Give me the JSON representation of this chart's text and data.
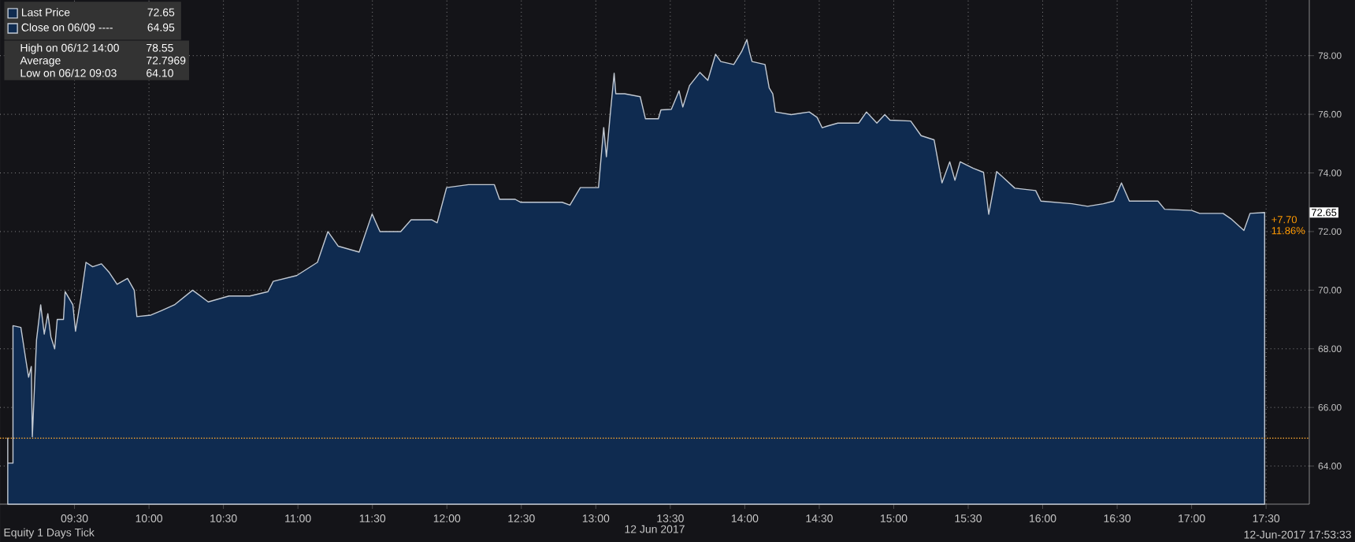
{
  "chart_data": {
    "type": "area",
    "title": "Equity 1 Days Tick",
    "xlabel": "12 Jun 2017",
    "x": [
      9.052,
      9.052,
      9.087,
      9.087,
      9.14,
      9.175,
      9.192,
      9.21,
      9.217,
      9.245,
      9.273,
      9.297,
      9.321,
      9.342,
      9.367,
      9.384,
      9.426,
      9.437,
      9.489,
      9.507,
      9.542,
      9.577,
      9.622,
      9.681,
      9.734,
      9.786,
      9.856,
      9.901,
      9.919,
      10.013,
      10.083,
      10.171,
      10.293,
      10.398,
      10.537,
      10.677,
      10.799,
      10.834,
      10.992,
      11.131,
      11.201,
      11.271,
      11.411,
      11.498,
      11.551,
      11.69,
      11.76,
      11.9,
      11.935,
      11.998,
      12.145,
      12.319,
      12.354,
      12.459,
      12.494,
      12.774,
      12.826,
      12.896,
      13.018,
      13.053,
      13.071,
      13.095,
      13.123,
      13.134,
      13.193,
      13.298,
      13.333,
      13.42,
      13.437,
      13.507,
      13.559,
      13.584,
      13.629,
      13.699,
      13.752,
      13.804,
      13.839,
      13.926,
      13.979,
      14.014,
      14.031,
      14.049,
      14.136,
      14.164,
      14.188,
      14.206,
      14.311,
      14.433,
      14.485,
      14.52,
      14.555,
      14.625,
      14.765,
      14.817,
      14.887,
      14.94,
      14.975,
      15.114,
      15.184,
      15.271,
      15.324,
      15.376,
      15.411,
      15.446,
      15.534,
      15.603,
      15.638,
      15.691,
      15.813,
      15.953,
      15.988,
      16.197,
      16.302,
      16.407,
      16.477,
      16.529,
      16.582,
      16.774,
      16.819,
      17.001,
      17.054,
      17.211,
      17.263,
      17.351,
      17.392,
      17.49
    ],
    "series": [
      {
        "name": "Last Price",
        "color": "#0f2b50",
        "values": [
          64.95,
          64.1,
          64.1,
          68.79,
          68.73,
          67.57,
          67.03,
          67.4,
          65.0,
          68.3,
          69.5,
          68.5,
          69.2,
          68.4,
          68.0,
          69.0,
          69.0,
          69.95,
          69.5,
          68.6,
          69.7,
          70.95,
          70.8,
          70.9,
          70.6,
          70.2,
          70.4,
          70.0,
          69.1,
          69.15,
          69.3,
          69.5,
          70.0,
          69.6,
          69.8,
          69.8,
          69.95,
          70.3,
          70.5,
          70.95,
          72.0,
          71.5,
          71.3,
          72.6,
          72.0,
          72.0,
          72.4,
          72.4,
          72.3,
          73.5,
          73.6,
          73.6,
          73.1,
          73.1,
          73.0,
          73.0,
          72.9,
          73.5,
          73.5,
          75.55,
          74.55,
          75.9,
          77.4,
          76.7,
          76.7,
          76.6,
          75.85,
          75.85,
          76.15,
          76.17,
          76.8,
          76.25,
          76.98,
          77.43,
          77.16,
          78.05,
          77.8,
          77.7,
          78.14,
          78.55,
          78.14,
          77.8,
          77.7,
          76.9,
          76.7,
          76.08,
          75.99,
          76.08,
          75.9,
          75.54,
          75.6,
          75.7,
          75.7,
          76.08,
          75.7,
          75.99,
          75.8,
          75.77,
          75.27,
          75.13,
          73.66,
          74.38,
          73.75,
          74.38,
          74.16,
          74.02,
          72.59,
          74.05,
          73.48,
          73.4,
          73.04,
          72.95,
          72.86,
          72.95,
          73.04,
          73.66,
          73.04,
          73.04,
          72.76,
          72.72,
          72.62,
          72.62,
          72.44,
          72.04,
          72.62,
          72.65
        ]
      }
    ],
    "xlim": [
      9.0,
      17.79
    ],
    "ylim": [
      62.7,
      79.9
    ],
    "xticks": [
      {
        "value": 9.5,
        "label": "09:30"
      },
      {
        "value": 10,
        "label": "10:00"
      },
      {
        "value": 10.5,
        "label": "10:30"
      },
      {
        "value": 11,
        "label": "11:00"
      },
      {
        "value": 11.5,
        "label": "11:30"
      },
      {
        "value": 12,
        "label": "12:00"
      },
      {
        "value": 12.5,
        "label": "12:30"
      },
      {
        "value": 13,
        "label": "13:00"
      },
      {
        "value": 13.5,
        "label": "13:30"
      },
      {
        "value": 14,
        "label": "14:00"
      },
      {
        "value": 14.5,
        "label": "14:30"
      },
      {
        "value": 15,
        "label": "15:00"
      },
      {
        "value": 15.5,
        "label": "15:30"
      },
      {
        "value": 16,
        "label": "16:00"
      },
      {
        "value": 16.5,
        "label": "16:30"
      },
      {
        "value": 17,
        "label": "17:00"
      },
      {
        "value": 17.5,
        "label": "17:30"
      }
    ],
    "yticks": [
      {
        "value": 64,
        "label": "64.00"
      },
      {
        "value": 66,
        "label": "66.00"
      },
      {
        "value": 68,
        "label": "68.00"
      },
      {
        "value": 70,
        "label": "70.00"
      },
      {
        "value": 72,
        "label": "72.00"
      },
      {
        "value": 74,
        "label": "74.00"
      },
      {
        "value": 76,
        "label": "76.00"
      },
      {
        "value": 78,
        "label": "78.00"
      }
    ],
    "ref_lines": [
      {
        "axis": "y",
        "value": 64.95,
        "color": "#f0a030",
        "line_style": "dotted"
      }
    ],
    "annotations": [
      "72.65",
      "Close on 06/09 ----",
      "64.95",
      "High on 06/12 14:00",
      "78.55",
      "Average",
      "72.7969",
      "Low on 06/12 09:03",
      "64.10",
      "72.65",
      "+7.70",
      "11.86%",
      "12-Jun-2017 17:53:33"
    ],
    "grid": true,
    "legend": "top left",
    "marker": "none",
    "line_style": "solid"
  }
}
